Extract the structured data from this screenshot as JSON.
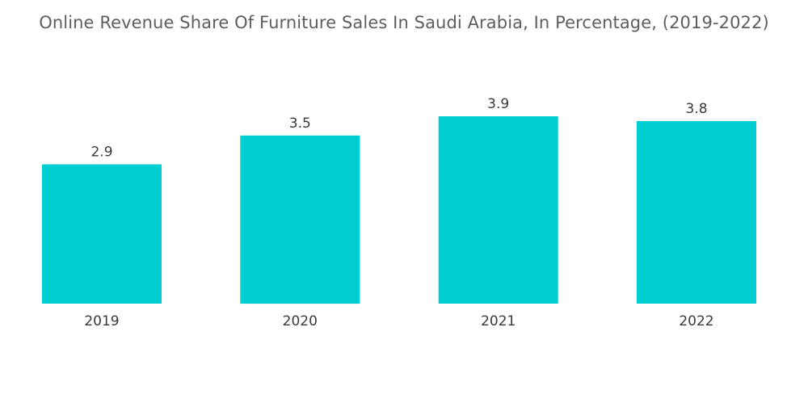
{
  "chart_data": {
    "type": "bar",
    "title": "Online Revenue Share Of Furniture Sales In Saudi Arabia, In Percentage, (2019-2022)",
    "categories": [
      "2019",
      "2020",
      "2021",
      "2022"
    ],
    "values": [
      2.9,
      3.5,
      3.9,
      3.8
    ],
    "data_labels": [
      "2.9",
      "3.5",
      "3.9",
      "3.8"
    ],
    "xlabel": "",
    "ylabel": "",
    "ylim": [
      0,
      4
    ],
    "grid": false,
    "legend": "none",
    "bar_color": "#00ced1"
  }
}
